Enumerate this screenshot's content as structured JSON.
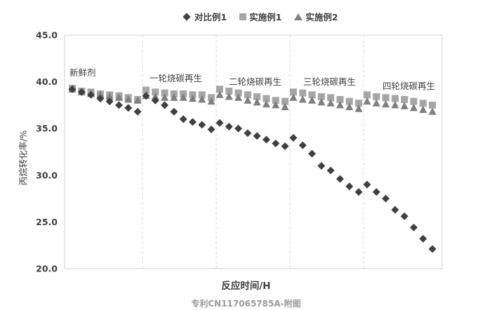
{
  "chart_data": {
    "type": "scatter",
    "title": "",
    "xlabel": "反应时间/H",
    "ylabel": "丙烷转化率/%",
    "ylim": [
      20.0,
      45.0
    ],
    "yticks": [
      "20.0",
      "25.0",
      "30.0",
      "35.0",
      "40.0",
      "45.0"
    ],
    "grid": false,
    "legend_position": "top",
    "stages": [
      "新鲜剂",
      "一轮烧碳再生",
      "二轮烧碳再生",
      "三轮烧碳再生",
      "四轮烧碳再生"
    ],
    "series": [
      {
        "name": "对比例1",
        "marker": "diamond",
        "color": "#404040",
        "groups": [
          [
            39.2,
            38.9,
            38.6,
            38.2,
            37.9,
            37.5,
            37.2,
            36.8
          ],
          [
            38.5,
            38.0,
            37.5,
            36.8,
            36.0,
            35.7,
            35.4,
            34.9
          ],
          [
            35.6,
            35.2,
            35.0,
            34.5,
            34.2,
            33.8,
            33.4,
            33.1
          ],
          [
            34.0,
            33.2,
            32.3,
            31.0,
            30.5,
            29.6,
            28.8,
            28.2
          ],
          [
            29.0,
            28.2,
            27.5,
            26.3,
            25.6,
            24.4,
            23.2,
            22.1
          ]
        ]
      },
      {
        "name": "实施例1",
        "marker": "square",
        "color": "#a6a6a6",
        "groups": [
          [
            39.3,
            39.0,
            38.9,
            38.7,
            38.6,
            38.5,
            38.3,
            38.1
          ],
          [
            39.1,
            38.9,
            38.8,
            38.7,
            38.7,
            38.6,
            38.6,
            38.3
          ],
          [
            39.2,
            39.0,
            38.8,
            38.6,
            38.4,
            38.2,
            38.0,
            37.9
          ],
          [
            38.9,
            38.8,
            38.6,
            38.4,
            38.3,
            38.1,
            37.9,
            37.7
          ],
          [
            38.6,
            38.4,
            38.3,
            38.2,
            38.1,
            37.9,
            37.7,
            37.5
          ]
        ]
      },
      {
        "name": "实施例2",
        "marker": "triangle",
        "color": "#7f7f7f",
        "groups": [
          [
            39.2,
            38.9,
            38.7,
            38.6,
            38.4,
            38.3,
            38.1,
            38.0
          ],
          [
            38.5,
            38.4,
            38.3,
            38.3,
            38.3,
            38.2,
            38.1,
            37.9
          ],
          [
            38.6,
            38.4,
            38.3,
            38.0,
            37.8,
            37.6,
            37.5,
            37.3
          ],
          [
            38.3,
            38.1,
            38.0,
            37.8,
            37.7,
            37.5,
            37.3,
            37.1
          ],
          [
            37.9,
            37.7,
            37.6,
            37.5,
            37.4,
            37.2,
            37.0,
            36.8
          ]
        ]
      }
    ]
  },
  "footer_text": "专利CN117065785A-附图"
}
